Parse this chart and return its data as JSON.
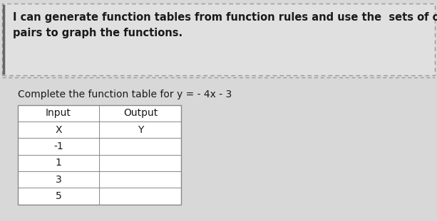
{
  "header_text": "I can generate function tables from function rules and use the  sets of ordered\npairs to graph the functions.",
  "subtitle": "Complete the function table for y = - 4x - 3",
  "col_headers": [
    "Input",
    "Output"
  ],
  "col_subheaders": [
    "X",
    "Y"
  ],
  "x_values": [
    "-1",
    "1",
    "3",
    "5"
  ],
  "y_values": [
    "",
    "",
    "",
    ""
  ],
  "bg_color": "#d8d8d8",
  "header_bg": "#e0e0e0",
  "table_bg": "#ffffff",
  "header_font_size": 10.5,
  "subtitle_font_size": 10,
  "table_font_size": 10,
  "text_color": "#1a1a1a",
  "border_color": "#888888",
  "dashed_border_color": "#999999",
  "left_accent_color": "#666666"
}
